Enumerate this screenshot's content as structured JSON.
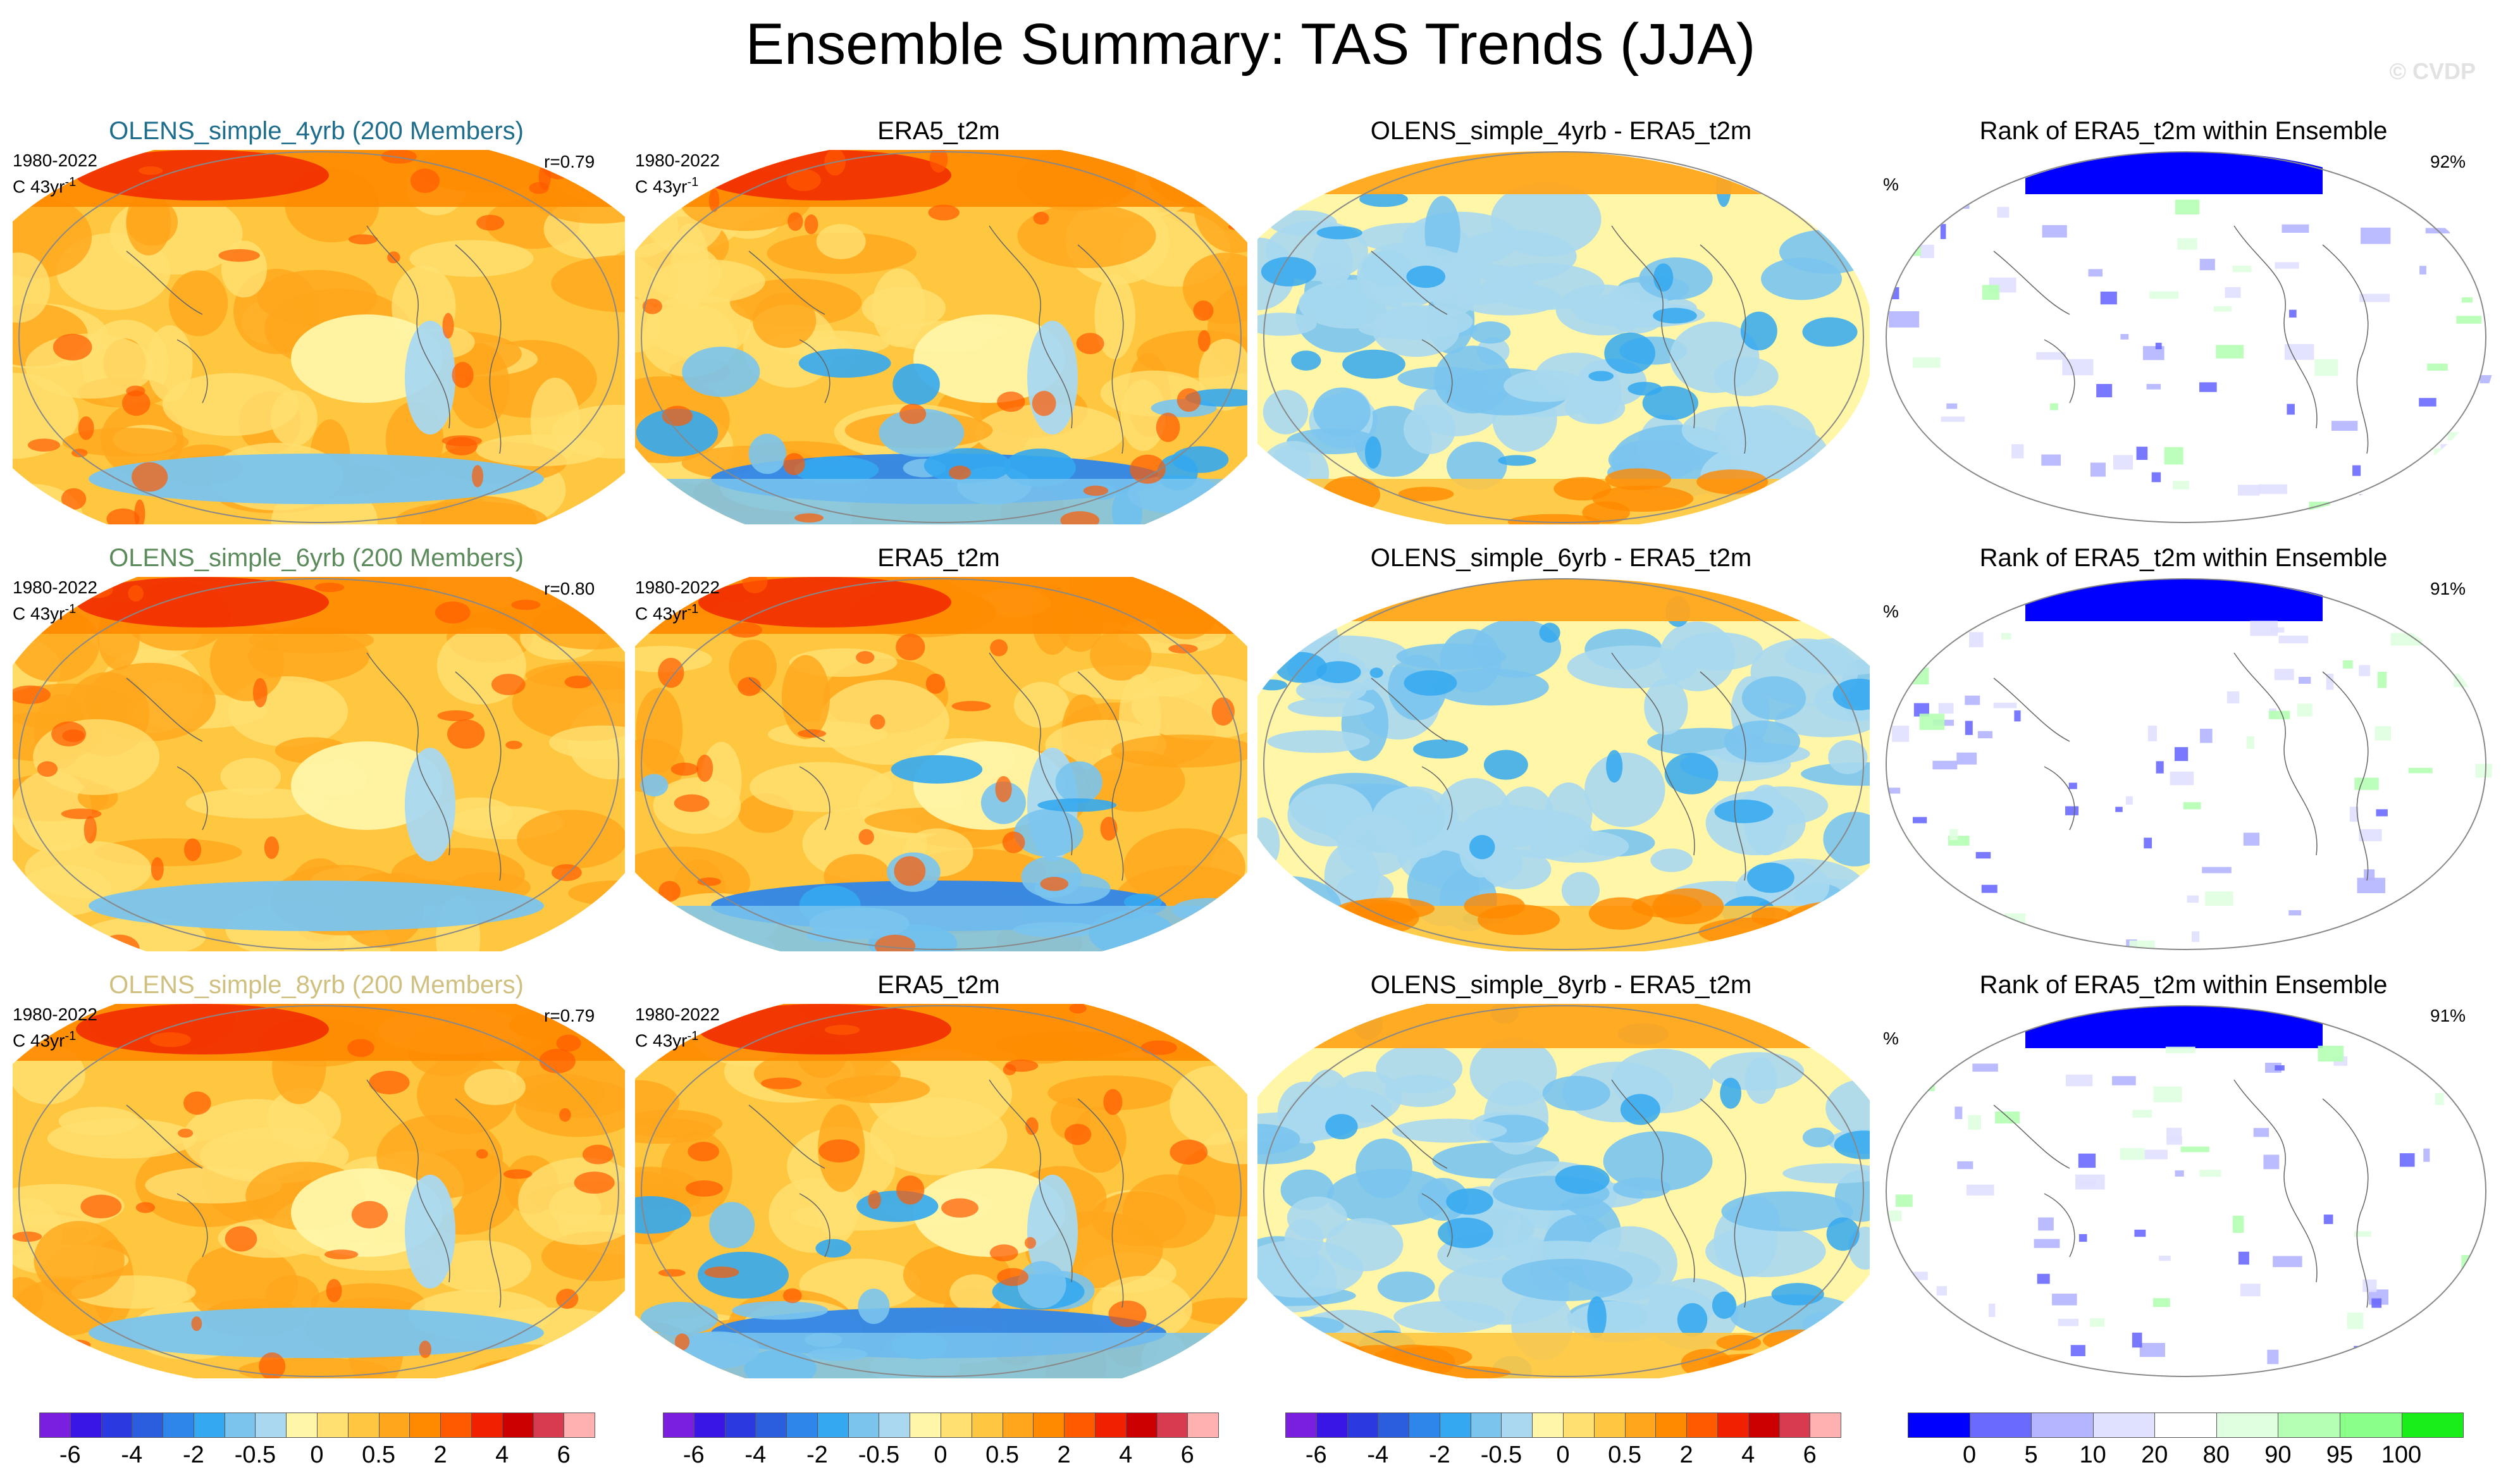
{
  "title": "Ensemble Summary: TAS Trends (JJA)",
  "credit": "© CVDP",
  "rows": [
    {
      "ens_title": "OLENS_simple_4yrb (200 Members)",
      "ens_color": "#1e6d8c",
      "period": "1980-2022",
      "units": "C 43yr",
      "units_sup": "-1",
      "r": "r=0.79",
      "obs_title": "ERA5_t2m",
      "diff_title": "OLENS_simple_4yrb - ERA5_t2m",
      "rank_title": "Rank of ERA5_t2m within Ensemble",
      "rank_unit": "%",
      "rank_pct": "92%"
    },
    {
      "ens_title": "OLENS_simple_6yrb (200 Members)",
      "ens_color": "#5b8a5b",
      "period": "1980-2022",
      "units": "C 43yr",
      "units_sup": "-1",
      "r": "r=0.80",
      "obs_title": "ERA5_t2m",
      "diff_title": "OLENS_simple_6yrb - ERA5_t2m",
      "rank_title": "Rank of ERA5_t2m within Ensemble",
      "rank_unit": "%",
      "rank_pct": "91%"
    },
    {
      "ens_title": "OLENS_simple_8yrb (200 Members)",
      "ens_color": "#cfc080",
      "period": "1980-2022",
      "units": "C 43yr",
      "units_sup": "-1",
      "r": "r=0.79",
      "obs_title": "ERA5_t2m",
      "diff_title": "OLENS_simple_8yrb - ERA5_t2m",
      "rank_title": "Rank of ERA5_t2m within Ensemble",
      "rank_unit": "%",
      "rank_pct": "91%"
    }
  ],
  "trend_colorbar": {
    "colors": [
      "#7a1fe0",
      "#3a16e6",
      "#2a3ae0",
      "#2a5ede",
      "#2f86ea",
      "#34a8f0",
      "#7ac4ee",
      "#a9d8f0",
      "#fff6a8",
      "#ffe070",
      "#ffc640",
      "#ffa61c",
      "#ff8a00",
      "#ff5a00",
      "#f02000",
      "#cc0000",
      "#d83a50",
      "#ffb0b0"
    ],
    "labels": [
      "-6",
      "-4",
      "-2",
      "-0.5",
      "0",
      "0.5",
      "2",
      "4",
      "6"
    ]
  },
  "rank_colorbar": {
    "colors": [
      "#0000ff",
      "#6a6aff",
      "#b4b4ff",
      "#e0e0ff",
      "#ffffff",
      "#e0ffe0",
      "#b4ffb4",
      "#8aff8a",
      "#1aee1a"
    ],
    "labels": [
      "0",
      "5",
      "10",
      "20",
      "80",
      "90",
      "95",
      "100"
    ]
  }
}
